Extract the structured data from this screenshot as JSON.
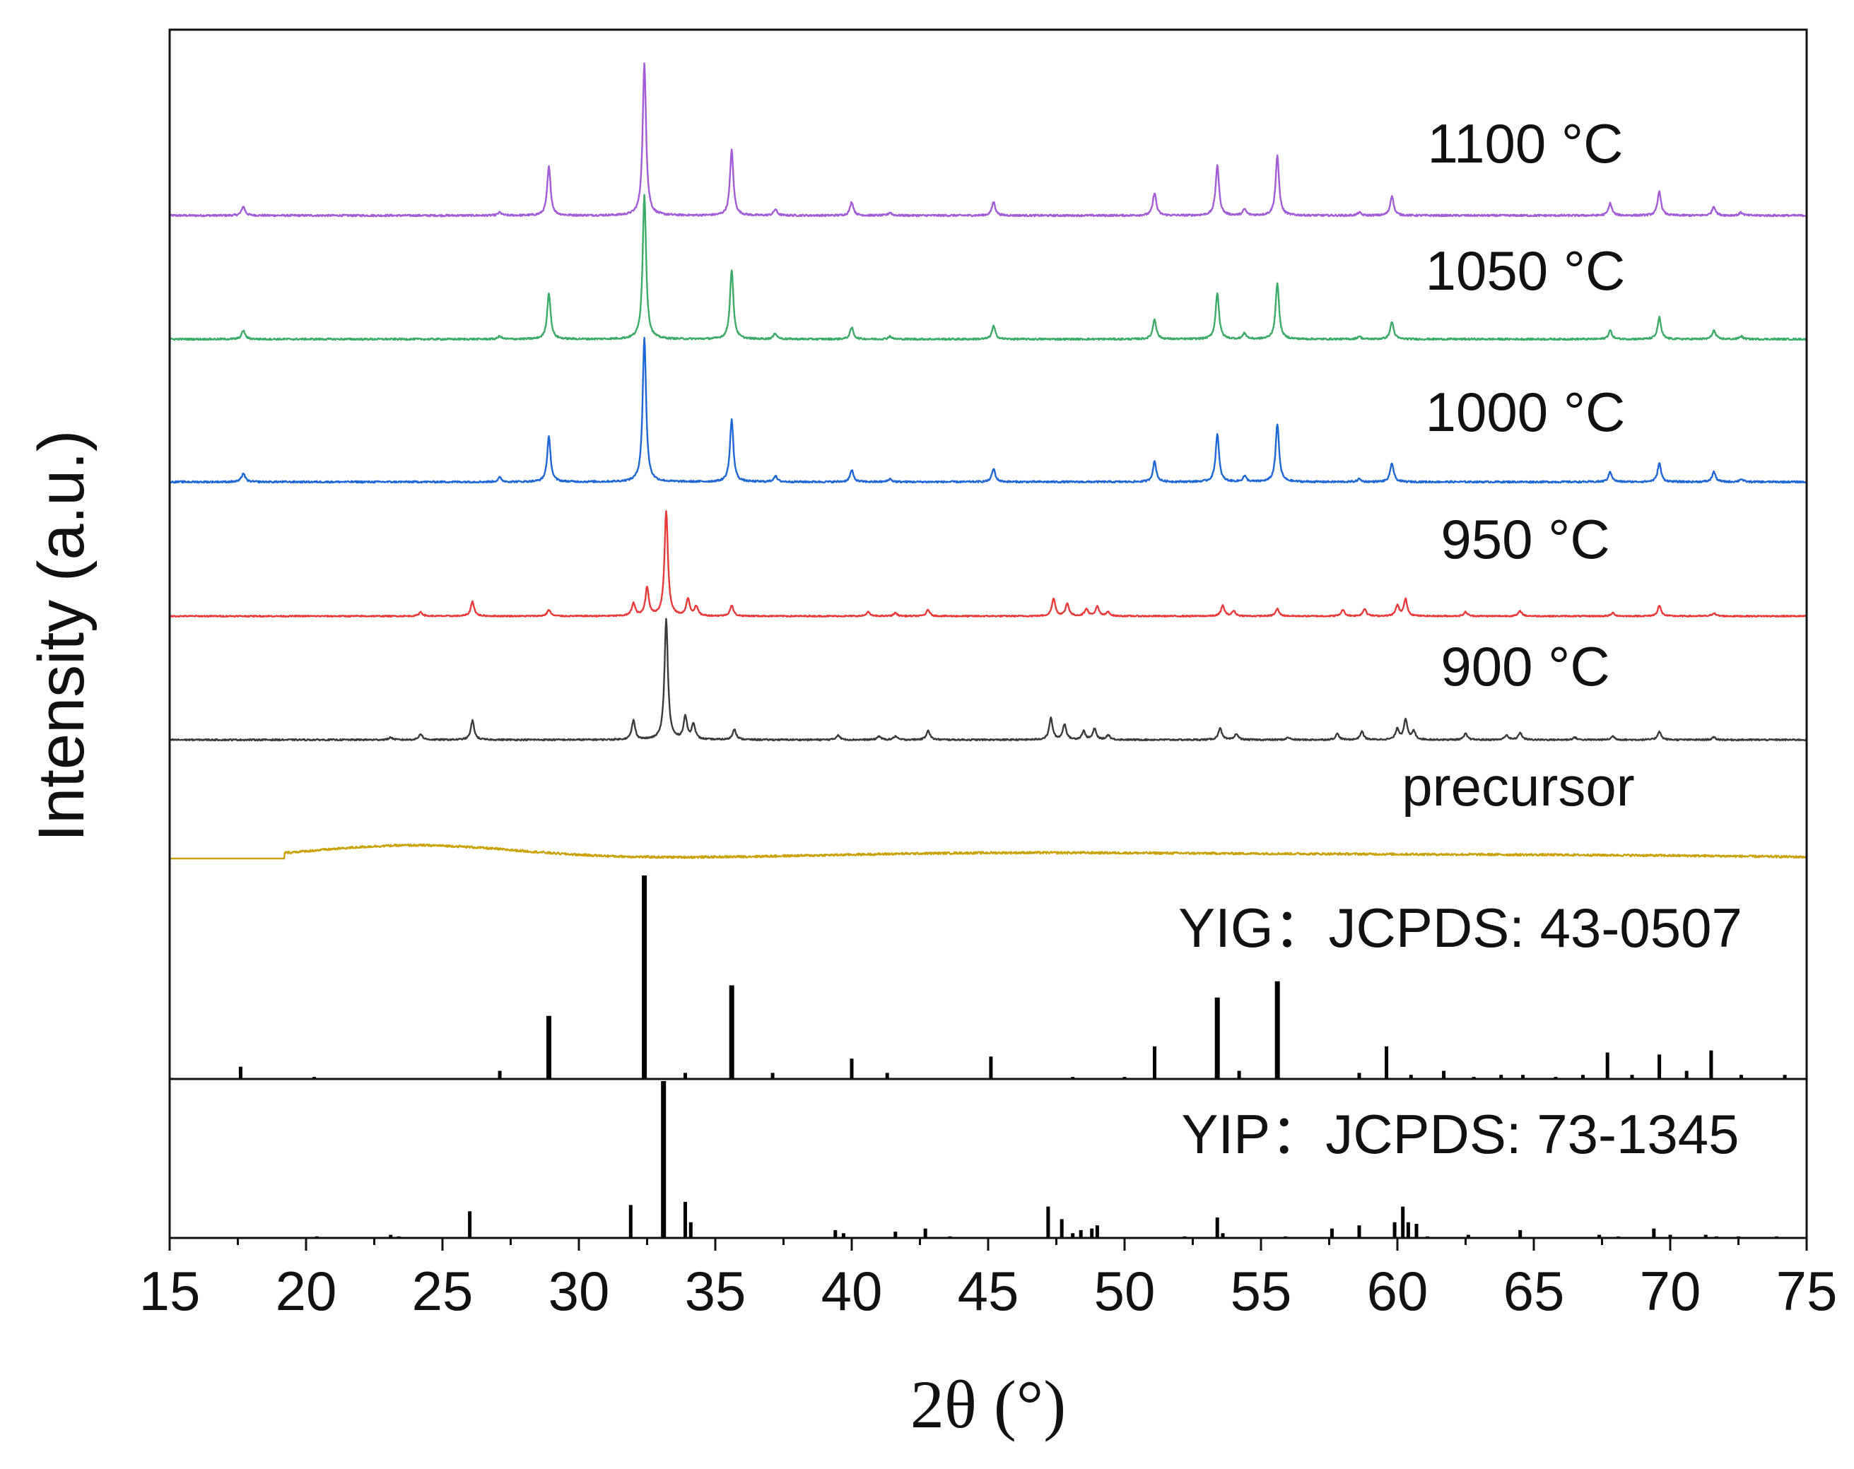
{
  "chart_data": {
    "type": "line",
    "xlabel": "2θ (°)",
    "ylabel": "Intensity (a.u.)",
    "xlim": [
      15,
      75
    ],
    "xticks": [
      15,
      20,
      25,
      30,
      35,
      40,
      45,
      50,
      55,
      60,
      65,
      70,
      75
    ],
    "xtick_labels": [
      "15",
      "20",
      "25",
      "30",
      "35",
      "40",
      "45",
      "50",
      "55",
      "60",
      "65",
      "70",
      "75"
    ],
    "grid": false,
    "series": [
      {
        "name": "1100 °C",
        "label": "1100 °C",
        "color": "#a35bd6",
        "baseline": 0.0,
        "peaks": [
          [
            17.7,
            0.06
          ],
          [
            27.1,
            0.02
          ],
          [
            28.9,
            0.32
          ],
          [
            32.4,
            1.0
          ],
          [
            35.6,
            0.43
          ],
          [
            37.2,
            0.04
          ],
          [
            40.0,
            0.09
          ],
          [
            41.4,
            0.02
          ],
          [
            45.2,
            0.09
          ],
          [
            51.1,
            0.15
          ],
          [
            53.4,
            0.33
          ],
          [
            54.4,
            0.04
          ],
          [
            55.6,
            0.39
          ],
          [
            58.6,
            0.02
          ],
          [
            59.8,
            0.13
          ],
          [
            67.8,
            0.08
          ],
          [
            69.6,
            0.16
          ],
          [
            71.6,
            0.06
          ],
          [
            72.6,
            0.02
          ]
        ]
      },
      {
        "name": "1050 °C",
        "label": "1050 °C",
        "color": "#3daa68",
        "baseline": 0.0,
        "peaks": [
          [
            17.7,
            0.06
          ],
          [
            27.1,
            0.02
          ],
          [
            28.9,
            0.32
          ],
          [
            32.4,
            1.0
          ],
          [
            35.6,
            0.48
          ],
          [
            37.2,
            0.04
          ],
          [
            40.0,
            0.08
          ],
          [
            41.4,
            0.02
          ],
          [
            45.2,
            0.09
          ],
          [
            51.1,
            0.14
          ],
          [
            53.4,
            0.32
          ],
          [
            54.4,
            0.04
          ],
          [
            55.6,
            0.39
          ],
          [
            58.6,
            0.02
          ],
          [
            59.8,
            0.12
          ],
          [
            67.8,
            0.06
          ],
          [
            69.6,
            0.15
          ],
          [
            71.6,
            0.06
          ],
          [
            72.6,
            0.02
          ]
        ]
      },
      {
        "name": "1000 °C",
        "label": "1000 °C",
        "color": "#1f66d6",
        "baseline": 0.0,
        "peaks": [
          [
            17.7,
            0.06
          ],
          [
            27.1,
            0.03
          ],
          [
            28.9,
            0.31
          ],
          [
            32.4,
            1.0
          ],
          [
            35.6,
            0.43
          ],
          [
            37.2,
            0.04
          ],
          [
            40.0,
            0.08
          ],
          [
            41.4,
            0.02
          ],
          [
            45.2,
            0.09
          ],
          [
            51.1,
            0.14
          ],
          [
            53.4,
            0.33
          ],
          [
            54.4,
            0.04
          ],
          [
            55.6,
            0.4
          ],
          [
            58.6,
            0.02
          ],
          [
            59.8,
            0.13
          ],
          [
            67.8,
            0.07
          ],
          [
            69.6,
            0.13
          ],
          [
            71.6,
            0.07
          ],
          [
            72.6,
            0.02
          ]
        ]
      },
      {
        "name": "950 °C",
        "label": "950 °C",
        "color": "#e83a3a",
        "baseline": 0.0,
        "peaks": [
          [
            24.2,
            0.04
          ],
          [
            26.1,
            0.14
          ],
          [
            28.9,
            0.06
          ],
          [
            32.0,
            0.12
          ],
          [
            32.5,
            0.27
          ],
          [
            33.2,
            1.0
          ],
          [
            34.0,
            0.16
          ],
          [
            34.3,
            0.09
          ],
          [
            35.6,
            0.1
          ],
          [
            40.6,
            0.04
          ],
          [
            41.6,
            0.03
          ],
          [
            42.8,
            0.06
          ],
          [
            47.4,
            0.17
          ],
          [
            47.9,
            0.12
          ],
          [
            48.6,
            0.07
          ],
          [
            49.0,
            0.09
          ],
          [
            49.4,
            0.04
          ],
          [
            53.6,
            0.1
          ],
          [
            54.0,
            0.05
          ],
          [
            55.6,
            0.07
          ],
          [
            58.0,
            0.06
          ],
          [
            58.8,
            0.07
          ],
          [
            60.0,
            0.1
          ],
          [
            60.3,
            0.16
          ],
          [
            62.5,
            0.04
          ],
          [
            64.5,
            0.05
          ],
          [
            67.9,
            0.03
          ],
          [
            69.6,
            0.1
          ],
          [
            71.6,
            0.03
          ]
        ]
      },
      {
        "name": "900 °C",
        "label": "900 °C",
        "color": "#3a3a3a",
        "baseline": 0.0,
        "peaks": [
          [
            23.1,
            0.02
          ],
          [
            24.2,
            0.05
          ],
          [
            26.1,
            0.16
          ],
          [
            32.0,
            0.16
          ],
          [
            33.2,
            1.0
          ],
          [
            33.9,
            0.19
          ],
          [
            34.2,
            0.13
          ],
          [
            35.7,
            0.09
          ],
          [
            39.5,
            0.04
          ],
          [
            41.0,
            0.03
          ],
          [
            41.6,
            0.03
          ],
          [
            42.8,
            0.08
          ],
          [
            47.3,
            0.18
          ],
          [
            47.8,
            0.13
          ],
          [
            48.5,
            0.07
          ],
          [
            48.9,
            0.09
          ],
          [
            49.4,
            0.04
          ],
          [
            53.5,
            0.1
          ],
          [
            54.1,
            0.05
          ],
          [
            56.0,
            0.02
          ],
          [
            57.8,
            0.05
          ],
          [
            58.7,
            0.07
          ],
          [
            60.0,
            0.09
          ],
          [
            60.3,
            0.17
          ],
          [
            60.6,
            0.07
          ],
          [
            62.5,
            0.05
          ],
          [
            64.0,
            0.04
          ],
          [
            64.5,
            0.06
          ],
          [
            66.5,
            0.02
          ],
          [
            67.9,
            0.03
          ],
          [
            69.6,
            0.07
          ],
          [
            71.6,
            0.02
          ]
        ]
      },
      {
        "name": "precursor",
        "label": "precursor",
        "color": "#c9a20a",
        "baseline": 0.0,
        "humps": [
          [
            24.0,
            0.22,
            3.7
          ],
          [
            43.0,
            0.06,
            5.5
          ],
          [
            50.0,
            0.05,
            6.0
          ],
          [
            57.5,
            0.04,
            5.5
          ],
          [
            64.5,
            0.03,
            5.0
          ],
          [
            71.0,
            0.03,
            5.0
          ]
        ]
      }
    ],
    "references": [
      {
        "name": "YIG",
        "label": "YIG：JCPDS: 43-0507",
        "color": "#000000",
        "lines": [
          [
            17.6,
            0.06
          ],
          [
            20.3,
            0.01
          ],
          [
            27.1,
            0.04
          ],
          [
            28.9,
            0.31
          ],
          [
            32.4,
            1.0
          ],
          [
            33.9,
            0.03
          ],
          [
            35.6,
            0.46
          ],
          [
            37.1,
            0.03
          ],
          [
            40.0,
            0.1
          ],
          [
            41.3,
            0.03
          ],
          [
            45.1,
            0.11
          ],
          [
            48.1,
            0.01
          ],
          [
            50.0,
            0.01
          ],
          [
            51.1,
            0.16
          ],
          [
            53.4,
            0.4
          ],
          [
            54.2,
            0.04
          ],
          [
            55.6,
            0.48
          ],
          [
            58.6,
            0.03
          ],
          [
            59.6,
            0.16
          ],
          [
            60.5,
            0.02
          ],
          [
            61.7,
            0.04
          ],
          [
            62.8,
            0.01
          ],
          [
            63.8,
            0.02
          ],
          [
            64.6,
            0.02
          ],
          [
            65.8,
            0.01
          ],
          [
            66.8,
            0.02
          ],
          [
            67.7,
            0.13
          ],
          [
            68.6,
            0.02
          ],
          [
            69.6,
            0.12
          ],
          [
            70.6,
            0.04
          ],
          [
            71.5,
            0.14
          ],
          [
            72.6,
            0.02
          ],
          [
            74.2,
            0.02
          ]
        ]
      },
      {
        "name": "YIP",
        "label": "YIP：JCPDS: 73-1345",
        "color": "#000000",
        "lines": [
          [
            20.4,
            0.01
          ],
          [
            23.1,
            0.02
          ],
          [
            23.4,
            0.01
          ],
          [
            26.0,
            0.17
          ],
          [
            31.9,
            0.21
          ],
          [
            33.1,
            1.0
          ],
          [
            33.9,
            0.23
          ],
          [
            34.1,
            0.1
          ],
          [
            39.4,
            0.05
          ],
          [
            39.7,
            0.03
          ],
          [
            41.6,
            0.04
          ],
          [
            42.7,
            0.06
          ],
          [
            43.6,
            0.01
          ],
          [
            47.2,
            0.2
          ],
          [
            47.7,
            0.12
          ],
          [
            48.1,
            0.03
          ],
          [
            48.4,
            0.05
          ],
          [
            48.8,
            0.06
          ],
          [
            49.0,
            0.08
          ],
          [
            52.2,
            0.01
          ],
          [
            53.4,
            0.13
          ],
          [
            53.6,
            0.03
          ],
          [
            55.9,
            0.01
          ],
          [
            57.6,
            0.06
          ],
          [
            58.6,
            0.08
          ],
          [
            59.9,
            0.1
          ],
          [
            60.2,
            0.2
          ],
          [
            60.4,
            0.1
          ],
          [
            60.7,
            0.09
          ],
          [
            61.1,
            0.01
          ],
          [
            62.6,
            0.02
          ],
          [
            64.5,
            0.05
          ],
          [
            67.4,
            0.02
          ],
          [
            68.1,
            0.01
          ],
          [
            69.4,
            0.06
          ],
          [
            70.0,
            0.02
          ],
          [
            71.3,
            0.02
          ],
          [
            71.7,
            0.01
          ],
          [
            72.5,
            0.01
          ],
          [
            73.9,
            0.01
          ]
        ]
      }
    ]
  }
}
